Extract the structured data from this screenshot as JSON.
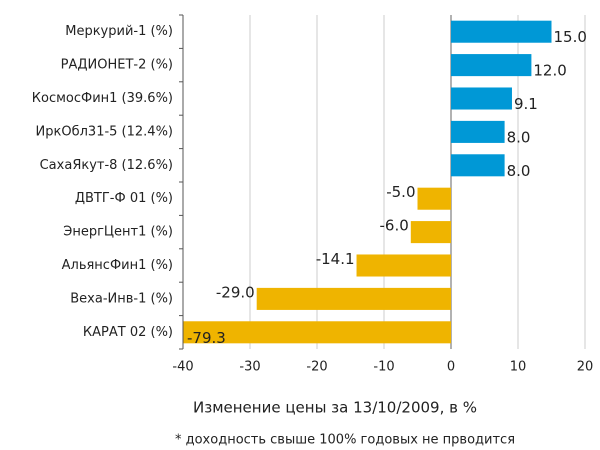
{
  "chart_data": {
    "type": "bar",
    "orientation": "horizontal",
    "categories": [
      "Меркурий-1 (%)",
      "РАДИОНЕТ-2 (%)",
      "КосмосФин1 (39.6%)",
      "ИркОбл31-5 (12.4%)",
      "СахаЯкут-8 (12.6%)",
      "ДВТГ-Ф 01 (%)",
      "ЭнергЦент1 (%)",
      "АльянсФин1 (%)",
      "Веха-Инв-1 (%)",
      "КАРАТ 02 (%)"
    ],
    "values": [
      15.0,
      12.0,
      9.1,
      8.0,
      8.0,
      -5.0,
      -6.0,
      -14.1,
      -29.0,
      -79.3
    ],
    "value_labels": [
      "15.0",
      "12.0",
      "9.1",
      "8.0",
      "8.0",
      "-5.0",
      "-6.0",
      "-14.1",
      "-29.0",
      "-79.3"
    ],
    "colors": [
      "#0098d6",
      "#0098d6",
      "#0098d6",
      "#0098d6",
      "#0098d6",
      "#efb400",
      "#efb400",
      "#efb400",
      "#efb400",
      "#efb400"
    ],
    "xlim": [
      -40,
      20
    ],
    "xticks": [
      -40,
      -30,
      -20,
      -10,
      0,
      10,
      20
    ],
    "grid": true,
    "xlabel": "Изменение цены за 13/10/2009, в %",
    "footnote": "* доходность свыше 100% годовых не прводится"
  }
}
